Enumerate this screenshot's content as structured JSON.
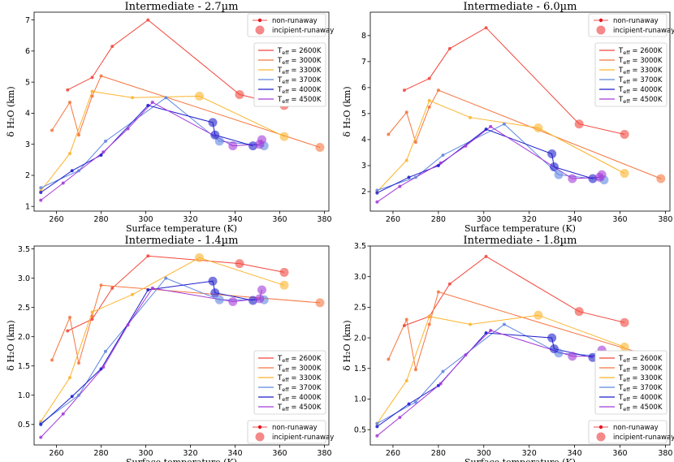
{
  "chart_data": [
    {
      "type": "line",
      "title": "Intermediate - 2.7µm",
      "xlabel": "Surface temperature (K)",
      "ylabel": "δ H₂O  (km)",
      "xlim": [
        250,
        382
      ],
      "ylim": [
        0.85,
        7.25
      ],
      "xticks": [
        260,
        280,
        300,
        320,
        340,
        360,
        380
      ],
      "yticks": [
        1,
        2,
        3,
        4,
        5,
        6,
        7
      ],
      "marker_legend": {
        "position": "top-right",
        "entries": [
          "non-runaway",
          "incipient-runaway"
        ]
      },
      "teff_legend": {
        "position": "upper-right",
        "entries": [
          "Teff = 2600K",
          "Teff = 3000K",
          "Teff = 3300K",
          "Teff = 3700K",
          "Teff = 4000K",
          "Teff = 4500K"
        ]
      },
      "series": [
        {
          "name": "Teff = 2600K",
          "color": "#f2463c",
          "x": [
            265,
            276,
            285,
            301,
            342,
            362
          ],
          "y": [
            4.75,
            5.15,
            6.15,
            7.0,
            4.6,
            4.25
          ],
          "incipient": [
            false,
            false,
            false,
            false,
            true,
            true
          ]
        },
        {
          "name": "Teff = 3000K",
          "color": "#f57640",
          "x": [
            258,
            266,
            270,
            276,
            280,
            378
          ],
          "y": [
            3.45,
            4.35,
            3.3,
            4.55,
            5.2,
            2.9
          ],
          "incipient": [
            false,
            false,
            false,
            false,
            false,
            true
          ]
        },
        {
          "name": "Teff = 3300K",
          "color": "#fcb42c",
          "x": [
            253,
            266,
            276,
            294,
            324,
            362
          ],
          "y": [
            1.5,
            2.7,
            4.7,
            4.5,
            4.55,
            3.25
          ],
          "incipient": [
            false,
            false,
            false,
            false,
            true,
            true
          ]
        },
        {
          "name": "Teff = 3700K",
          "color": "#5f86e2",
          "x": [
            253,
            270,
            282,
            309,
            333,
            353
          ],
          "y": [
            1.6,
            2.15,
            3.1,
            4.5,
            3.1,
            2.95
          ],
          "incipient": [
            false,
            false,
            false,
            false,
            true,
            true
          ]
        },
        {
          "name": "Teff = 4000K",
          "color": "#1f1fcc",
          "x": [
            253,
            267,
            280,
            301,
            330,
            331,
            348
          ],
          "y": [
            1.45,
            2.15,
            2.65,
            4.25,
            3.7,
            3.3,
            2.95
          ],
          "incipient": [
            false,
            false,
            false,
            false,
            true,
            true,
            true
          ]
        },
        {
          "name": "Teff = 4500K",
          "color": "#a43ad8",
          "x": [
            253,
            263,
            281,
            292,
            303,
            339,
            351,
            352
          ],
          "y": [
            1.2,
            1.75,
            2.75,
            3.5,
            4.35,
            2.95,
            3.0,
            3.15
          ],
          "incipient": [
            false,
            false,
            false,
            false,
            false,
            true,
            true,
            true
          ]
        }
      ]
    },
    {
      "type": "line",
      "title": "Intermediate - 6.0µm",
      "xlabel": "Surface temperature (K)",
      "ylabel": "δ H₂O  (km)",
      "xlim": [
        250,
        382
      ],
      "ylim": [
        1.25,
        8.9
      ],
      "xticks": [
        260,
        280,
        300,
        320,
        340,
        360,
        380
      ],
      "yticks": [
        2,
        3,
        4,
        5,
        6,
        7,
        8
      ],
      "marker_legend": {
        "position": "top-right",
        "entries": [
          "non-runaway",
          "incipient-runaway"
        ]
      },
      "teff_legend": {
        "position": "upper-right",
        "entries": [
          "Teff = 2600K",
          "Teff = 3000K",
          "Teff = 3300K",
          "Teff = 3700K",
          "Teff = 4000K",
          "Teff = 4500K"
        ]
      },
      "series": [
        {
          "name": "Teff = 2600K",
          "color": "#f2463c",
          "x": [
            265,
            276,
            285,
            301,
            342,
            362
          ],
          "y": [
            5.9,
            6.35,
            7.5,
            8.3,
            4.6,
            4.2
          ],
          "incipient": [
            false,
            false,
            false,
            false,
            true,
            true
          ]
        },
        {
          "name": "Teff = 3000K",
          "color": "#f57640",
          "x": [
            258,
            266,
            270,
            276,
            280,
            378
          ],
          "y": [
            4.2,
            5.05,
            3.9,
            5.25,
            5.9,
            2.5
          ],
          "incipient": [
            false,
            false,
            false,
            false,
            false,
            true
          ]
        },
        {
          "name": "Teff = 3300K",
          "color": "#fcb42c",
          "x": [
            253,
            266,
            276,
            294,
            324,
            362
          ],
          "y": [
            2.0,
            3.2,
            5.5,
            4.85,
            4.45,
            2.7
          ],
          "incipient": [
            false,
            false,
            false,
            false,
            true,
            true
          ]
        },
        {
          "name": "Teff = 3700K",
          "color": "#5f86e2",
          "x": [
            253,
            270,
            282,
            309,
            333,
            353
          ],
          "y": [
            2.05,
            2.55,
            3.4,
            4.6,
            2.65,
            2.45
          ],
          "incipient": [
            false,
            false,
            false,
            false,
            true,
            true
          ]
        },
        {
          "name": "Teff = 4000K",
          "color": "#1f1fcc",
          "x": [
            253,
            267,
            280,
            301,
            330,
            331,
            348
          ],
          "y": [
            1.95,
            2.55,
            3.0,
            4.4,
            3.45,
            2.95,
            2.5
          ],
          "incipient": [
            false,
            false,
            false,
            false,
            true,
            true,
            true
          ]
        },
        {
          "name": "Teff = 4500K",
          "color": "#a43ad8",
          "x": [
            253,
            263,
            281,
            292,
            303,
            339,
            351,
            352
          ],
          "y": [
            1.6,
            2.2,
            3.1,
            3.75,
            4.5,
            2.5,
            2.55,
            2.65
          ],
          "incipient": [
            false,
            false,
            false,
            false,
            false,
            true,
            true,
            true
          ]
        }
      ]
    },
    {
      "type": "line",
      "title": "Intermediate - 1.4µm",
      "xlabel": "Surface temperature (K)",
      "ylabel": "δ H₂O  (km)",
      "xlim": [
        250,
        382
      ],
      "ylim": [
        0.15,
        3.55
      ],
      "xticks": [
        260,
        280,
        300,
        320,
        340,
        360,
        380
      ],
      "yticks": [
        0.5,
        1.0,
        1.5,
        2.0,
        2.5,
        3.0,
        3.5
      ],
      "marker_legend": {
        "position": "bottom-right",
        "entries": [
          "non-runaway",
          "incipient-runaway"
        ]
      },
      "teff_legend": {
        "position": "lower-right",
        "entries": [
          "Teff = 2600K",
          "Teff = 3000K",
          "Teff = 3300K",
          "Teff = 3700K",
          "Teff = 4000K",
          "Teff = 4500K"
        ]
      },
      "series": [
        {
          "name": "Teff = 2600K",
          "color": "#f2463c",
          "x": [
            265,
            276,
            285,
            301,
            342,
            362
          ],
          "y": [
            2.1,
            2.3,
            2.83,
            3.38,
            3.25,
            3.1
          ],
          "incipient": [
            false,
            false,
            false,
            false,
            true,
            true
          ]
        },
        {
          "name": "Teff = 3000K",
          "color": "#f57640",
          "x": [
            258,
            266,
            270,
            276,
            280,
            378
          ],
          "y": [
            1.6,
            2.33,
            1.55,
            2.35,
            2.88,
            2.58
          ],
          "incipient": [
            false,
            false,
            false,
            false,
            false,
            true
          ]
        },
        {
          "name": "Teff = 3300K",
          "color": "#fcb42c",
          "x": [
            253,
            266,
            276,
            294,
            324,
            362
          ],
          "y": [
            0.55,
            1.3,
            2.42,
            2.72,
            3.35,
            2.88
          ],
          "incipient": [
            false,
            false,
            false,
            false,
            true,
            true
          ]
        },
        {
          "name": "Teff = 3700K",
          "color": "#5f86e2",
          "x": [
            253,
            270,
            282,
            309,
            333,
            353
          ],
          "y": [
            0.52,
            1.0,
            1.75,
            3.0,
            2.63,
            2.63
          ],
          "incipient": [
            false,
            false,
            false,
            false,
            true,
            true
          ]
        },
        {
          "name": "Teff = 4000K",
          "color": "#1f1fcc",
          "x": [
            253,
            267,
            280,
            301,
            330,
            331,
            348
          ],
          "y": [
            0.5,
            0.98,
            1.45,
            2.8,
            2.95,
            2.75,
            2.62
          ],
          "incipient": [
            false,
            false,
            false,
            false,
            true,
            true,
            true
          ]
        },
        {
          "name": "Teff = 4500K",
          "color": "#a43ad8",
          "x": [
            253,
            263,
            281,
            292,
            303,
            339,
            351,
            352
          ],
          "y": [
            0.28,
            0.68,
            1.48,
            2.2,
            2.83,
            2.6,
            2.65,
            2.8
          ],
          "incipient": [
            false,
            false,
            false,
            false,
            false,
            true,
            true,
            true
          ]
        }
      ]
    },
    {
      "type": "line",
      "title": "Intermediate - 1.8µm",
      "xlabel": "Surface temperature (K)",
      "ylabel": "δ H₂O  (km)",
      "xlim": [
        250,
        382
      ],
      "ylim": [
        0.25,
        3.5
      ],
      "xticks": [
        260,
        280,
        300,
        320,
        340,
        360,
        380
      ],
      "yticks": [
        0.5,
        1.0,
        1.5,
        2.0,
        2.5,
        3.0,
        3.5
      ],
      "marker_legend": {
        "position": "bottom-right",
        "entries": [
          "non-runaway",
          "incipient-runaway"
        ]
      },
      "teff_legend": {
        "position": "lower-right",
        "entries": [
          "Teff = 2600K",
          "Teff = 3000K",
          "Teff = 3300K",
          "Teff = 3700K",
          "Teff = 4000K",
          "Teff = 4500K"
        ]
      },
      "series": [
        {
          "name": "Teff = 2600K",
          "color": "#f2463c",
          "x": [
            265,
            276,
            285,
            301,
            342,
            362
          ],
          "y": [
            2.2,
            2.35,
            2.88,
            3.33,
            2.43,
            2.25
          ],
          "incipient": [
            false,
            false,
            false,
            false,
            true,
            true
          ]
        },
        {
          "name": "Teff = 3000K",
          "color": "#f57640",
          "x": [
            258,
            266,
            270,
            276,
            280,
            378
          ],
          "y": [
            1.65,
            2.3,
            1.48,
            2.22,
            2.75,
            1.65
          ],
          "incipient": [
            false,
            false,
            false,
            false,
            false,
            true
          ]
        },
        {
          "name": "Teff = 3300K",
          "color": "#fcb42c",
          "x": [
            253,
            266,
            276,
            294,
            324,
            362
          ],
          "y": [
            0.6,
            1.3,
            2.35,
            2.22,
            2.37,
            1.85
          ],
          "incipient": [
            false,
            false,
            false,
            false,
            true,
            true
          ]
        },
        {
          "name": "Teff = 3700K",
          "color": "#5f86e2",
          "x": [
            253,
            270,
            282,
            309,
            333,
            353
          ],
          "y": [
            0.6,
            0.95,
            1.45,
            2.22,
            1.75,
            1.7
          ],
          "incipient": [
            false,
            false,
            false,
            false,
            true,
            true
          ]
        },
        {
          "name": "Teff = 4000K",
          "color": "#1f1fcc",
          "x": [
            253,
            267,
            280,
            301,
            330,
            331,
            348
          ],
          "y": [
            0.55,
            0.92,
            1.22,
            2.08,
            2.0,
            1.82,
            1.68
          ],
          "incipient": [
            false,
            false,
            false,
            false,
            true,
            true,
            true
          ]
        },
        {
          "name": "Teff = 4500K",
          "color": "#a43ad8",
          "x": [
            253,
            263,
            281,
            292,
            303,
            339,
            351,
            352
          ],
          "y": [
            0.4,
            0.7,
            1.25,
            1.72,
            2.12,
            1.7,
            1.7,
            1.8
          ],
          "incipient": [
            false,
            false,
            false,
            false,
            false,
            true,
            true,
            true
          ]
        }
      ]
    }
  ],
  "legend_labels": {
    "non_runaway": "non-runaway",
    "incipient_runaway": "incipient-runaway",
    "teff_prefix": "T",
    "teff_sub": "eff",
    "teff": [
      "2600K",
      "3000K",
      "3300K",
      "3700K",
      "4000K",
      "4500K"
    ]
  },
  "colors": {
    "marker_red": "#e8141e",
    "marker_big": "#f26b6b"
  }
}
